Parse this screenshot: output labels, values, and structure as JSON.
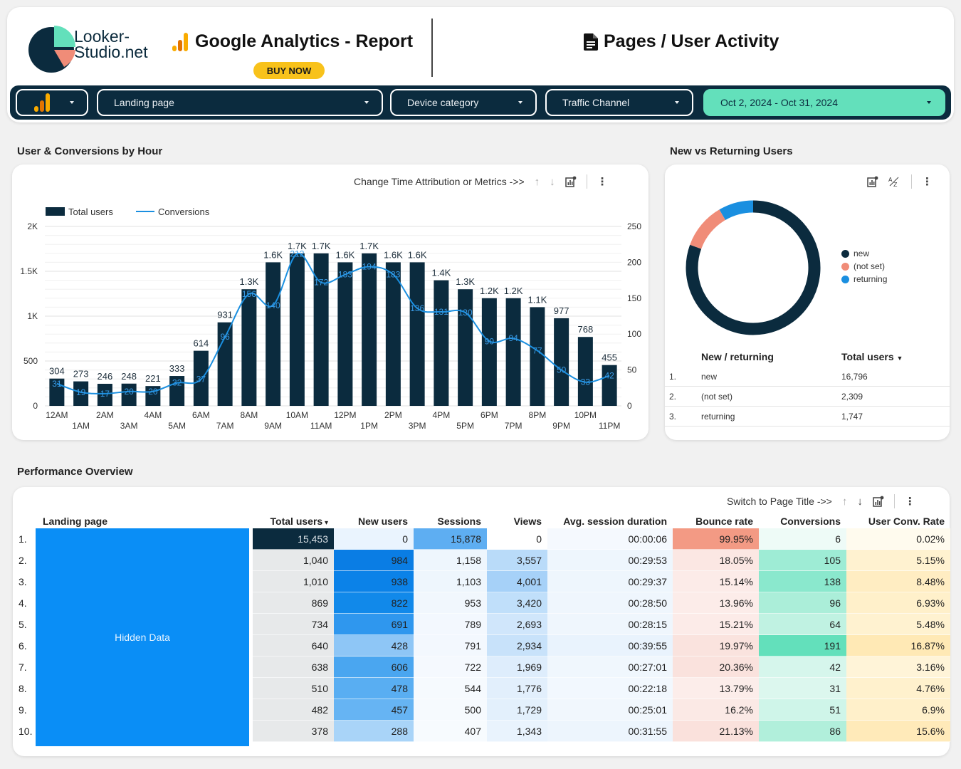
{
  "brand": {
    "line1": "Looker-",
    "line2": "Studio.net"
  },
  "header": {
    "report_title": "Google Analytics - Report",
    "buy_label": "BUY NOW",
    "page_title": "Pages / User Activity"
  },
  "filters": {
    "landing_page": "Landing page",
    "device_category": "Device category",
    "traffic_channel": "Traffic Channel",
    "date_range": "Oct 2, 2024 - Oct 31, 2024"
  },
  "hourly": {
    "section_title": "User & Conversions by Hour",
    "toolbar_label": "Change Time Attribution or Metrics ->>",
    "chart_data": {
      "type": "bar",
      "categories": [
        "12AM",
        "1AM",
        "2AM",
        "3AM",
        "4AM",
        "5AM",
        "6AM",
        "7AM",
        "8AM",
        "9AM",
        "10AM",
        "11AM",
        "12PM",
        "1PM",
        "2PM",
        "3PM",
        "4PM",
        "5PM",
        "6PM",
        "7PM",
        "8PM",
        "9PM",
        "10PM",
        "11PM"
      ],
      "series": [
        {
          "name": "Total users",
          "values": [
            304,
            273,
            246,
            248,
            221,
            333,
            614,
            931,
            1300,
            1600,
            1700,
            1700,
            1600,
            1700,
            1600,
            1600,
            1400,
            1300,
            1200,
            1200,
            1100,
            977,
            768,
            455
          ],
          "labels": [
            "304",
            "273",
            "246",
            "248",
            "221",
            "333",
            "614",
            "931",
            "1.3K",
            "1.6K",
            "1.7K",
            "1.7K",
            "1.6K",
            "1.7K",
            "1.6K",
            "1.6K",
            "1.4K",
            "1.3K",
            "1.2K",
            "1.2K",
            "1.1K",
            "977",
            "768",
            "455"
          ],
          "color": "#0b2b3e"
        },
        {
          "name": "Conversions",
          "values": [
            31,
            19,
            17,
            20,
            20,
            32,
            37,
            96,
            156,
            140,
            212,
            172,
            183,
            194,
            183,
            136,
            131,
            130,
            90,
            94,
            77,
            50,
            33,
            42
          ],
          "color": "#1a8fe0"
        }
      ],
      "left_axis": {
        "ticks": [
          0,
          500,
          1000,
          1500,
          2000
        ],
        "tick_labels": [
          "0",
          "500",
          "1K",
          "1.5K",
          "2K"
        ],
        "range": [
          0,
          2000
        ]
      },
      "right_axis": {
        "ticks": [
          0,
          50,
          100,
          150,
          200,
          250
        ],
        "tick_labels": [
          "0",
          "50",
          "100",
          "150",
          "200",
          "250"
        ],
        "range": [
          0,
          250
        ]
      },
      "legend": "top-left",
      "grid": true
    }
  },
  "nvr": {
    "section_title": "New vs Returning Users",
    "chart_data": {
      "type": "pie",
      "categories": [
        "new",
        "(not set)",
        "returning"
      ],
      "values": [
        16796,
        2309,
        1747
      ],
      "colors": [
        "#0b2b3e",
        "#f08c78",
        "#1a8fe0"
      ],
      "legend": "right"
    },
    "table": {
      "headers": [
        "New / returning",
        "Total users"
      ],
      "rows": [
        {
          "num": "1.",
          "label": "new",
          "value": "16,796"
        },
        {
          "num": "2.",
          "label": "(not set)",
          "value": "2,309"
        },
        {
          "num": "3.",
          "label": "returning",
          "value": "1,747"
        }
      ]
    }
  },
  "perf": {
    "section_title": "Performance Overview",
    "toolbar_label": "Switch to Page Title ->>",
    "hidden_label": "Hidden Data",
    "headers": [
      "Landing page",
      "Total users",
      "New users",
      "Sessions",
      "Views",
      "Avg. session duration",
      "Bounce rate",
      "Conversions",
      "User Conv. Rate"
    ],
    "rows": [
      {
        "num": "1.",
        "total": "15,453",
        "new": "0",
        "sessions": "15,878",
        "views": "0",
        "dur": "00:00:06",
        "bounce": "99.95%",
        "conv": "6",
        "rate": "0.02%"
      },
      {
        "num": "2.",
        "total": "1,040",
        "new": "984",
        "sessions": "1,158",
        "views": "3,557",
        "dur": "00:29:53",
        "bounce": "18.05%",
        "conv": "105",
        "rate": "5.15%"
      },
      {
        "num": "3.",
        "total": "1,010",
        "new": "938",
        "sessions": "1,103",
        "views": "4,001",
        "dur": "00:29:37",
        "bounce": "15.14%",
        "conv": "138",
        "rate": "8.48%"
      },
      {
        "num": "4.",
        "total": "869",
        "new": "822",
        "sessions": "953",
        "views": "3,420",
        "dur": "00:28:50",
        "bounce": "13.96%",
        "conv": "96",
        "rate": "6.93%"
      },
      {
        "num": "5.",
        "total": "734",
        "new": "691",
        "sessions": "789",
        "views": "2,693",
        "dur": "00:28:15",
        "bounce": "15.21%",
        "conv": "64",
        "rate": "5.48%"
      },
      {
        "num": "6.",
        "total": "640",
        "new": "428",
        "sessions": "791",
        "views": "2,934",
        "dur": "00:39:55",
        "bounce": "19.97%",
        "conv": "191",
        "rate": "16.87%"
      },
      {
        "num": "7.",
        "total": "638",
        "new": "606",
        "sessions": "722",
        "views": "1,969",
        "dur": "00:27:01",
        "bounce": "20.36%",
        "conv": "42",
        "rate": "3.16%"
      },
      {
        "num": "8.",
        "total": "510",
        "new": "478",
        "sessions": "544",
        "views": "1,776",
        "dur": "00:22:18",
        "bounce": "13.79%",
        "conv": "31",
        "rate": "4.76%"
      },
      {
        "num": "9.",
        "total": "482",
        "new": "457",
        "sessions": "500",
        "views": "1,729",
        "dur": "00:25:01",
        "bounce": "16.2%",
        "conv": "51",
        "rate": "6.9%"
      },
      {
        "num": "10.",
        "total": "378",
        "new": "288",
        "sessions": "407",
        "views": "1,343",
        "dur": "00:31:55",
        "bounce": "21.13%",
        "conv": "86",
        "rate": "15.6%"
      }
    ]
  }
}
